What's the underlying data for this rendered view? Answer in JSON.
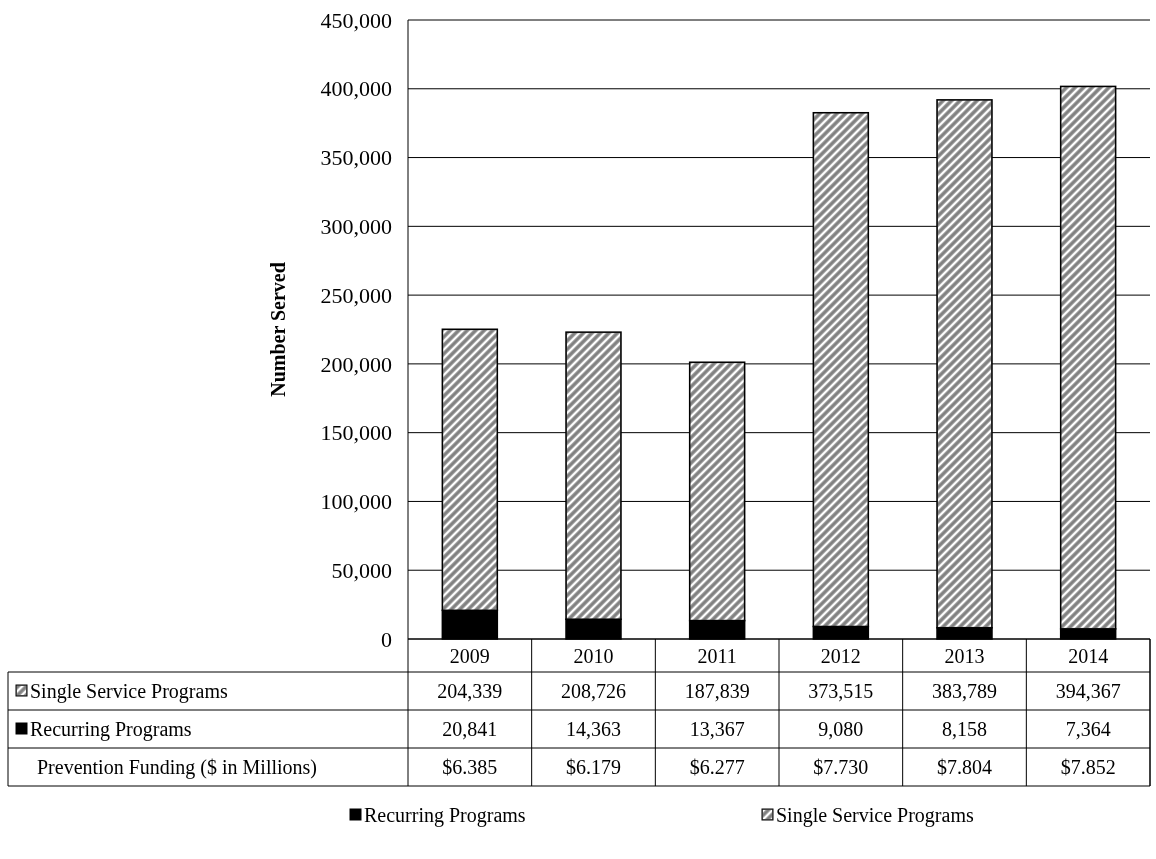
{
  "chart_data": {
    "type": "bar",
    "stacked": true,
    "ylabel": "Number Served",
    "categories": [
      "2009",
      "2010",
      "2011",
      "2012",
      "2013",
      "2014"
    ],
    "series": [
      {
        "name": "Recurring Programs",
        "color": "#000000",
        "values": [
          20841,
          14363,
          13367,
          9080,
          8158,
          7364
        ],
        "value_labels": [
          "20,841",
          "14,363",
          "13,367",
          "9,080",
          "8,158",
          "7,364"
        ]
      },
      {
        "name": "Single Service Programs",
        "color": "#808080",
        "values": [
          204339,
          208726,
          187839,
          373515,
          383789,
          394367
        ],
        "value_labels": [
          "204,339",
          "208,726",
          "187,839",
          "373,515",
          "383,789",
          "394,367"
        ]
      }
    ],
    "ylim": [
      0,
      450000
    ],
    "yticks": [
      {
        "value": 0,
        "label": "0"
      },
      {
        "value": 50000,
        "label": "50,000"
      },
      {
        "value": 100000,
        "label": "100,000"
      },
      {
        "value": 150000,
        "label": "150,000"
      },
      {
        "value": 200000,
        "label": "200,000"
      },
      {
        "value": 250000,
        "label": "250,000"
      },
      {
        "value": 300000,
        "label": "300,000"
      },
      {
        "value": 350000,
        "label": "350,000"
      },
      {
        "value": 400000,
        "label": "400,000"
      },
      {
        "value": 450000,
        "label": "450,000"
      }
    ],
    "grid": "y",
    "legend": "bottom",
    "annotations": [
      "Prevention Funding ($ in Millions)",
      "$6.385",
      "$6.179",
      "$6.277",
      "$7.730",
      "$7.804",
      "$7.852"
    ]
  }
}
